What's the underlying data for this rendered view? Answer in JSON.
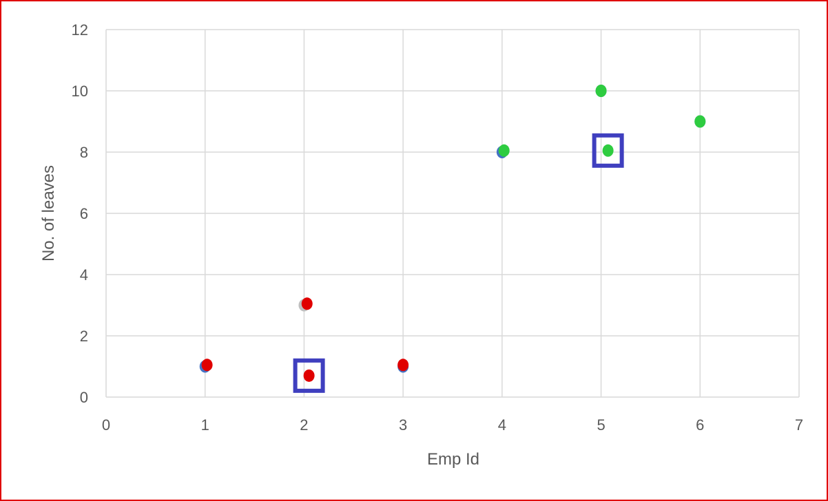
{
  "chart_data": {
    "type": "scatter",
    "xlabel": "Emp Id",
    "ylabel": "No. of leaves",
    "xlim": [
      0,
      7
    ],
    "ylim": [
      0,
      12
    ],
    "x_ticks": [
      0,
      1,
      2,
      3,
      4,
      5,
      6,
      7
    ],
    "y_ticks": [
      0,
      2,
      4,
      6,
      8,
      10,
      12
    ],
    "grid": true,
    "legend": "none",
    "colors": {
      "blue": "#4472c4",
      "red": "#e00000",
      "green": "#2ecc40",
      "gray": "#bfbfbf",
      "highlight": "#3f3fbf",
      "grid": "#d9d9d9"
    },
    "series": [
      {
        "color": "#4472c4",
        "points": [
          {
            "x": 1,
            "y": 1
          },
          {
            "x": 3,
            "y": 1
          },
          {
            "x": 4,
            "y": 8
          },
          {
            "x": 5,
            "y": 10
          },
          {
            "x": 6,
            "y": 9
          }
        ]
      },
      {
        "color": "#bfbfbf",
        "points": [
          {
            "x": 2,
            "y": 3
          }
        ]
      },
      {
        "color": "#e00000",
        "points": [
          {
            "x": 1.02,
            "y": 1.05
          },
          {
            "x": 2.03,
            "y": 3.05
          },
          {
            "x": 3.0,
            "y": 1.05
          },
          {
            "x": 2.05,
            "y": 0.7
          }
        ]
      },
      {
        "color": "#2ecc40",
        "points": [
          {
            "x": 4.02,
            "y": 8.05
          },
          {
            "x": 5.0,
            "y": 10.0
          },
          {
            "x": 6.0,
            "y": 9.0
          },
          {
            "x": 5.07,
            "y": 8.05
          }
        ]
      }
    ],
    "highlighted_points": [
      {
        "x": 2.05,
        "y": 0.7
      },
      {
        "x": 5.07,
        "y": 8.05
      }
    ]
  }
}
